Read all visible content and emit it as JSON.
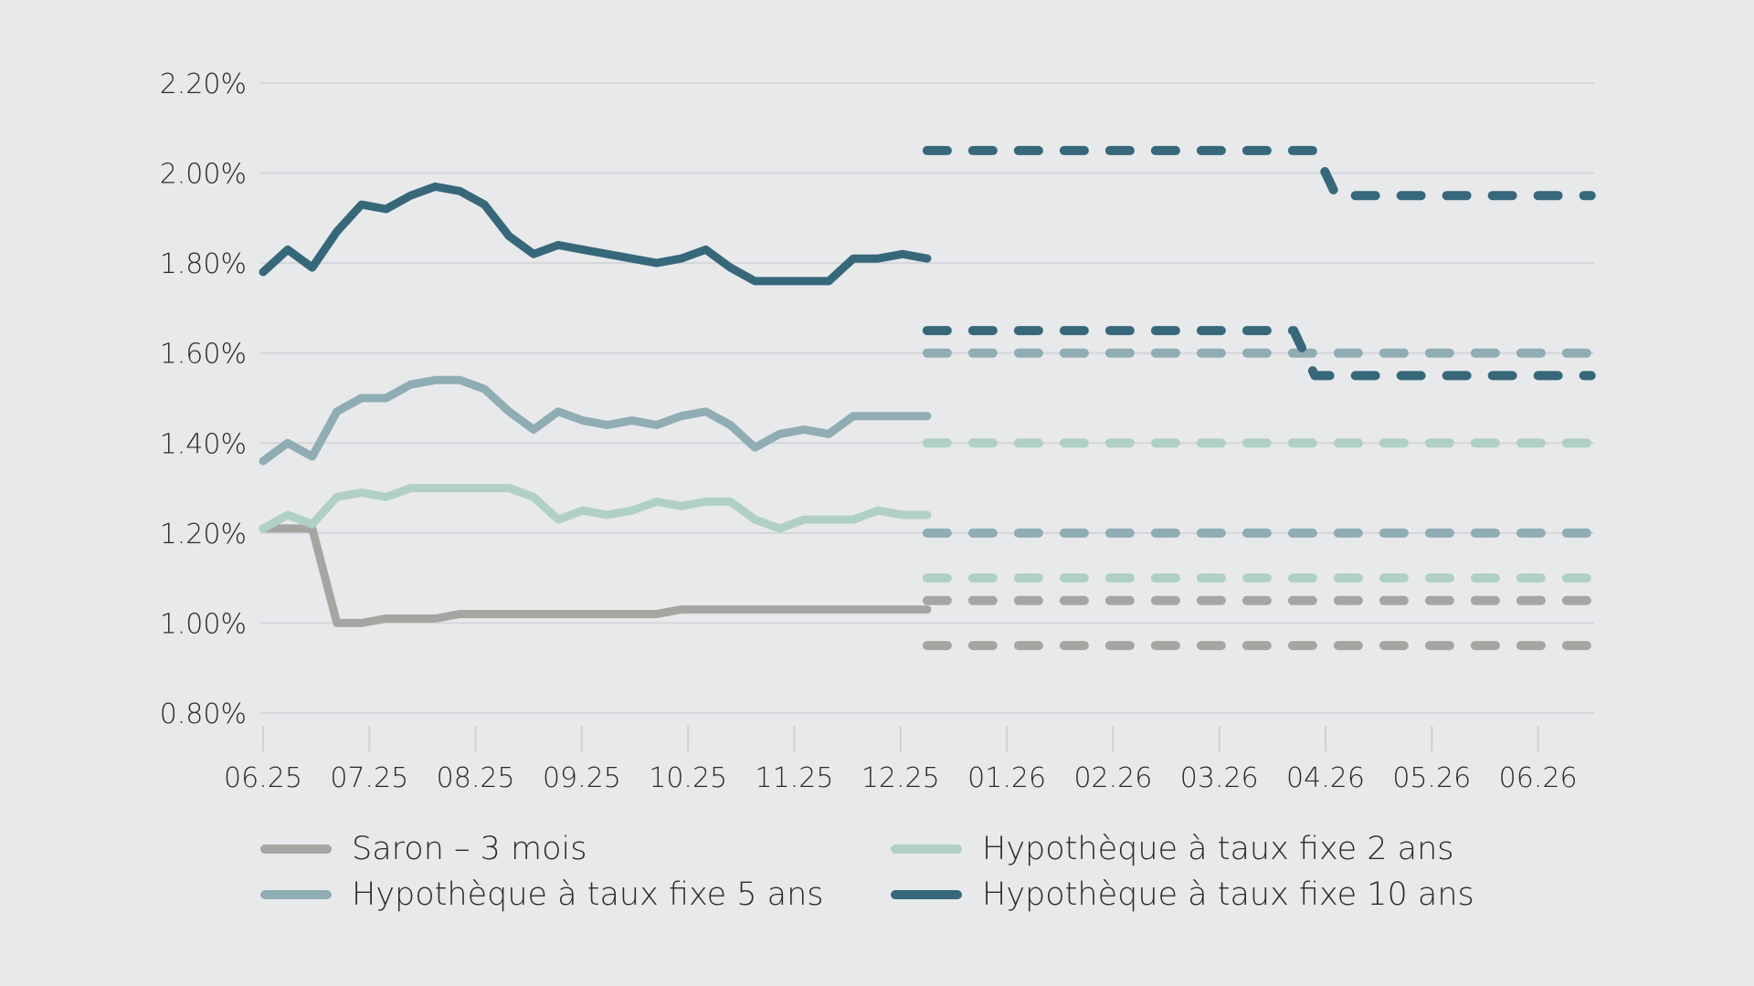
{
  "colors": {
    "background": "#e8e9eb",
    "saron": "#a5a6a2",
    "fixed2": "#b0d0c6",
    "fixed5": "#8fadb3",
    "fixed10": "#36687a"
  },
  "legend": [
    {
      "key": "saron",
      "label": "Saron – 3 mois",
      "color": "#a5a6a2"
    },
    {
      "key": "fixed2",
      "label": "Hypothèque à taux fixe 2 ans",
      "color": "#b0d0c6"
    },
    {
      "key": "fixed5",
      "label": "Hypothèque à taux fixe 5 ans",
      "color": "#8fadb3"
    },
    {
      "key": "fixed10",
      "label": "Hypothèque à taux fixe 10 ans",
      "color": "#36687a"
    }
  ],
  "chart_data": {
    "type": "line",
    "title": "",
    "xlabel": "",
    "ylabel": "",
    "ylim": [
      0.8,
      2.2
    ],
    "y_ticks": [
      "0.80%",
      "1.00%",
      "1.20%",
      "1.40%",
      "1.60%",
      "1.80%",
      "2.00%",
      "2.20%"
    ],
    "y_tick_values": [
      0.8,
      1.0,
      1.2,
      1.4,
      1.6,
      1.8,
      2.0,
      2.2
    ],
    "x_ticks": [
      "06.25",
      "07.25",
      "08.25",
      "09.25",
      "10.25",
      "11.25",
      "12.25",
      "01.26",
      "02.26",
      "03.26",
      "04.26",
      "05.26",
      "06.26"
    ],
    "grid": true,
    "legend_position": "bottom",
    "historical_x_range_months": [
      0,
      6.25
    ],
    "historical_points": 28,
    "series": [
      {
        "name": "Saron – 3 mois",
        "key": "saron",
        "style": "solid",
        "values": [
          1.21,
          1.21,
          1.21,
          1.0,
          1.0,
          1.01,
          1.01,
          1.01,
          1.02,
          1.02,
          1.02,
          1.02,
          1.02,
          1.02,
          1.02,
          1.02,
          1.02,
          1.03,
          1.03,
          1.03,
          1.03,
          1.03,
          1.03,
          1.03,
          1.03,
          1.03,
          1.03,
          1.03
        ]
      },
      {
        "name": "Hypothèque à taux fixe 2 ans",
        "key": "fixed2",
        "style": "solid",
        "values": [
          1.21,
          1.24,
          1.22,
          1.28,
          1.29,
          1.28,
          1.3,
          1.3,
          1.3,
          1.3,
          1.3,
          1.28,
          1.23,
          1.25,
          1.24,
          1.25,
          1.27,
          1.26,
          1.27,
          1.27,
          1.23,
          1.21,
          1.23,
          1.23,
          1.23,
          1.25,
          1.24,
          1.24
        ]
      },
      {
        "name": "Hypothèque à taux fixe 5 ans",
        "key": "fixed5",
        "style": "solid",
        "values": [
          1.36,
          1.4,
          1.37,
          1.47,
          1.5,
          1.5,
          1.53,
          1.54,
          1.54,
          1.52,
          1.47,
          1.43,
          1.47,
          1.45,
          1.44,
          1.45,
          1.44,
          1.46,
          1.47,
          1.44,
          1.39,
          1.42,
          1.43,
          1.42,
          1.46,
          1.46,
          1.46,
          1.46
        ]
      },
      {
        "name": "Hypothèque à taux fixe 10 ans",
        "key": "fixed10",
        "style": "solid",
        "values": [
          1.78,
          1.83,
          1.79,
          1.87,
          1.93,
          1.92,
          1.95,
          1.97,
          1.96,
          1.93,
          1.86,
          1.82,
          1.84,
          1.83,
          1.82,
          1.81,
          1.8,
          1.81,
          1.83,
          1.79,
          1.76,
          1.76,
          1.76,
          1.76,
          1.81,
          1.81,
          1.82,
          1.81
        ]
      }
    ],
    "forecast": [
      {
        "key": "fixed10",
        "bound": "upper",
        "style": "dashed",
        "segments": [
          {
            "from": 6.25,
            "to": 9.9,
            "value": 2.05
          },
          {
            "from": 10.1,
            "to": 12.5,
            "value": 1.95
          }
        ]
      },
      {
        "key": "fixed10",
        "bound": "lower",
        "style": "dashed",
        "segments": [
          {
            "from": 6.25,
            "to": 9.7,
            "value": 1.65
          },
          {
            "from": 9.9,
            "to": 12.5,
            "value": 1.55
          }
        ]
      },
      {
        "key": "fixed5",
        "bound": "upper",
        "style": "dashed",
        "segments": [
          {
            "from": 6.25,
            "to": 12.5,
            "value": 1.6
          }
        ]
      },
      {
        "key": "fixed5",
        "bound": "lower",
        "style": "dashed",
        "segments": [
          {
            "from": 6.25,
            "to": 12.5,
            "value": 1.2
          }
        ]
      },
      {
        "key": "fixed2",
        "bound": "upper",
        "style": "dashed",
        "segments": [
          {
            "from": 6.25,
            "to": 12.5,
            "value": 1.4
          }
        ]
      },
      {
        "key": "fixed2",
        "bound": "lower",
        "style": "dashed",
        "segments": [
          {
            "from": 6.25,
            "to": 12.5,
            "value": 1.1
          }
        ]
      },
      {
        "key": "saron",
        "bound": "upper",
        "style": "dashed",
        "segments": [
          {
            "from": 6.25,
            "to": 12.5,
            "value": 1.05
          }
        ]
      },
      {
        "key": "saron",
        "bound": "lower",
        "style": "dashed",
        "segments": [
          {
            "from": 6.25,
            "to": 12.5,
            "value": 0.95
          }
        ]
      }
    ]
  }
}
